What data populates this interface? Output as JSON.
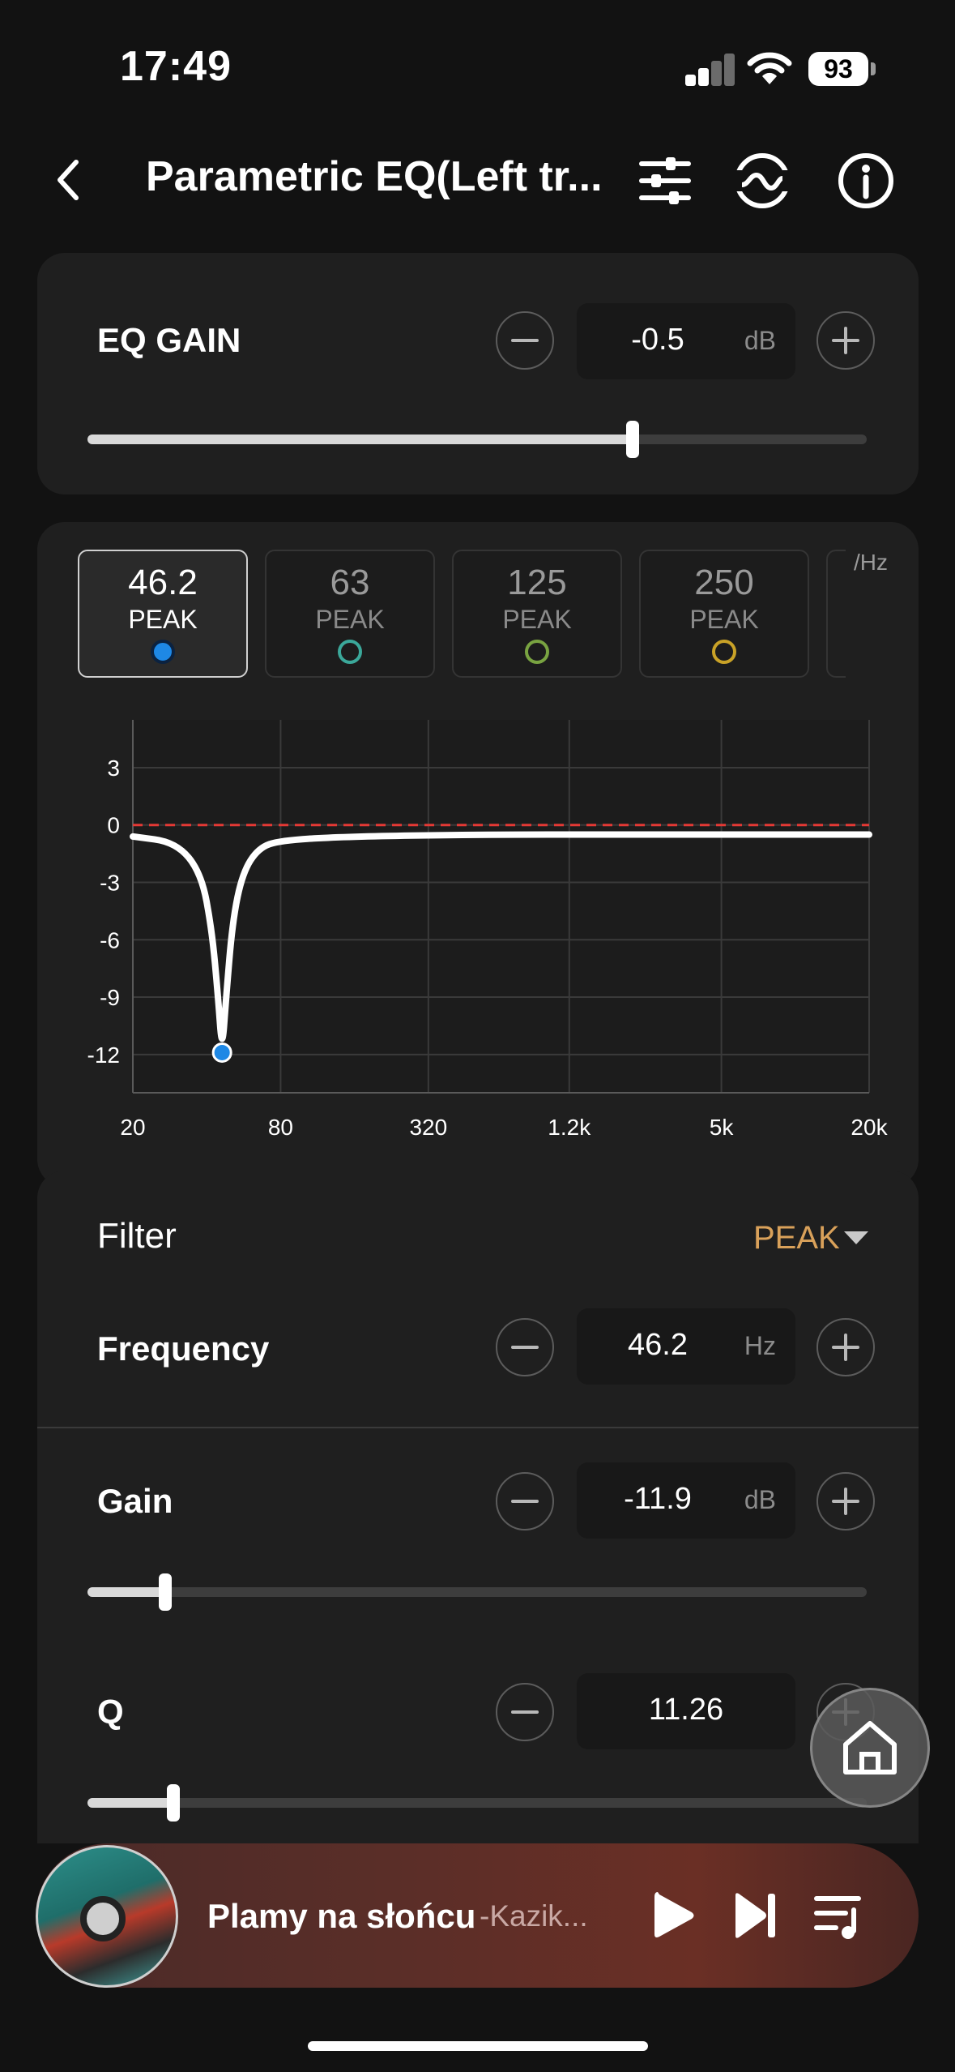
{
  "status_bar": {
    "time": "17:49",
    "battery": "93"
  },
  "header": {
    "title": "Parametric EQ(Left tr..."
  },
  "eq_gain": {
    "label": "EQ GAIN",
    "value": "-0.5",
    "unit": "dB",
    "slider_fraction": 0.7
  },
  "bands": [
    {
      "freq": "46.2",
      "type": "PEAK",
      "color": "#1e88e5",
      "active": true
    },
    {
      "freq": "63",
      "type": "PEAK",
      "color": "#3ba89a",
      "active": false
    },
    {
      "freq": "125",
      "type": "PEAK",
      "color": "#79a341",
      "active": false
    },
    {
      "freq": "250",
      "type": "PEAK",
      "color": "#c9a227",
      "active": false
    }
  ],
  "band_unit": "/Hz",
  "chart_data": {
    "type": "line",
    "x_scale": "log",
    "x_ticks": [
      "20",
      "80",
      "320",
      "1.2k",
      "5k",
      "20k"
    ],
    "y_ticks": [
      "3",
      "0",
      "-3",
      "-6",
      "-9",
      "-12"
    ],
    "ylim": [
      -14,
      5.5
    ],
    "xlim": [
      20,
      20000
    ],
    "reference_line": {
      "y": 0,
      "color": "#e53935",
      "style": "dashed"
    },
    "series": [
      {
        "color": "#ffffff",
        "points": [
          [
            20,
            -0.6
          ],
          [
            30,
            -0.9
          ],
          [
            38,
            -2.5
          ],
          [
            42,
            -5.5
          ],
          [
            44.5,
            -9
          ],
          [
            46.2,
            -11.9
          ],
          [
            48,
            -9
          ],
          [
            51,
            -5
          ],
          [
            56,
            -2.5
          ],
          [
            65,
            -1.2
          ],
          [
            80,
            -0.8
          ],
          [
            150,
            -0.6
          ],
          [
            500,
            -0.5
          ],
          [
            2000,
            -0.5
          ],
          [
            20000,
            -0.5
          ]
        ]
      }
    ],
    "marker": {
      "x": 46.2,
      "y": -11.9,
      "color": "#1e88e5"
    },
    "grid": true
  },
  "filter": {
    "label": "Filter",
    "value": "PEAK",
    "frequency": {
      "label": "Frequency",
      "value": "46.2",
      "unit": "Hz"
    },
    "gain": {
      "label": "Gain",
      "value": "-11.9",
      "unit": "dB",
      "slider_fraction": 0.1
    },
    "q": {
      "label": "Q",
      "value": "11.26",
      "slider_fraction": 0.11
    }
  },
  "player": {
    "title": "Plamy na słońcu",
    "artist": "-Kazik..."
  }
}
